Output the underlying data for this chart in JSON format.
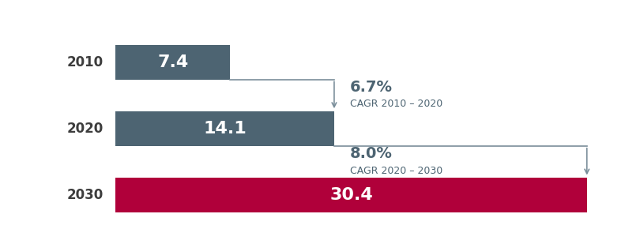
{
  "bars": [
    {
      "year": "2010",
      "value": 7.4,
      "color": "#4d6472"
    },
    {
      "year": "2020",
      "value": 14.1,
      "color": "#4d6472"
    },
    {
      "year": "2030",
      "value": 30.4,
      "color": "#b0003a"
    }
  ],
  "annotations": [
    {
      "pct": "6.7%",
      "label": "CAGR 2010 – 2020"
    },
    {
      "pct": "8.0%",
      "label": "CAGR 2020 – 2030"
    }
  ],
  "bar_height": 0.52,
  "xlim": [
    -2.5,
    33
  ],
  "ylim": [
    -0.55,
    2.75
  ],
  "year_label_color": "#3d3d3d",
  "value_label_color": "#ffffff",
  "annotation_pct_color": "#4d6472",
  "annotation_label_color": "#4d6472",
  "arrow_color": "#7a8e9a",
  "background_color": "#ffffff",
  "bar_label_fontsize": 16,
  "year_fontsize": 12,
  "pct_fontsize": 14,
  "cagr_fontsize": 9
}
